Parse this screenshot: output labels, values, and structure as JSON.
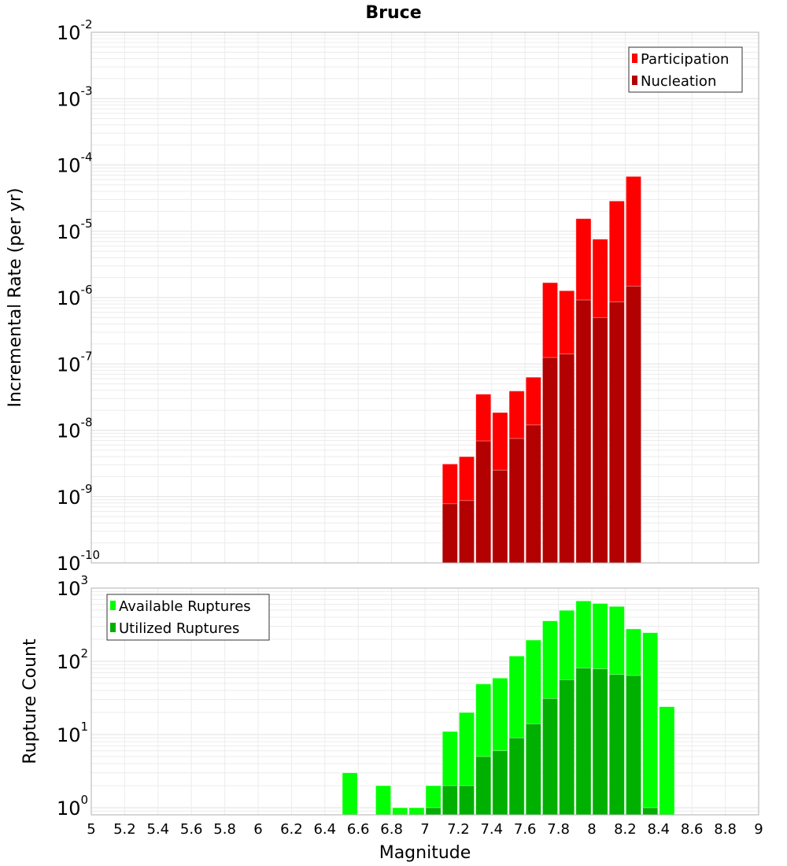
{
  "title": "Bruce",
  "chart_data": [
    {
      "type": "bar",
      "title": "Bruce",
      "xlabel": "",
      "ylabel": "Incremental Rate (per yr)",
      "yscale": "log",
      "xlim": [
        5,
        9
      ],
      "ylim": [
        1e-10,
        0.01
      ],
      "ytick_exponents": [
        -2,
        -3,
        -4,
        -5,
        -6,
        -7,
        -8,
        -9,
        -10
      ],
      "grid": true,
      "legend_position": "top-right",
      "bin_width": 0.1,
      "x": [
        7.15,
        7.25,
        7.35,
        7.45,
        7.55,
        7.65,
        7.75,
        7.85,
        7.95,
        8.05,
        8.15,
        8.25
      ],
      "series": [
        {
          "name": "Participation",
          "color": "#ff0000",
          "values": [
            3.1e-09,
            4e-09,
            3.5e-08,
            1.85e-08,
            3.9e-08,
            6.3e-08,
            1.68e-06,
            1.27e-06,
            1.55e-05,
            7.6e-06,
            2.86e-05,
            6.7e-05
          ]
        },
        {
          "name": "Nucleation",
          "color": "#b30000",
          "values": [
            7.8e-10,
            8.7e-10,
            6.9e-09,
            2.5e-09,
            7.5e-09,
            1.2e-08,
            1.25e-07,
            1.41e-07,
            9.2e-07,
            5e-07,
            8.6e-07,
            1.49e-06
          ]
        }
      ]
    },
    {
      "type": "bar",
      "title": "",
      "xlabel": "Magnitude",
      "ylabel": "Rupture Count",
      "yscale": "log",
      "xlim": [
        5,
        9
      ],
      "ylim": [
        0.8,
        1000
      ],
      "ytick_exponents": [
        3,
        2,
        1,
        0
      ],
      "xticks": [
        "5",
        "5.2",
        "5.4",
        "5.6",
        "5.8",
        "6",
        "6.2",
        "6.4",
        "6.6",
        "6.8",
        "7",
        "7.2",
        "7.4",
        "7.6",
        "7.8",
        "8",
        "8.2",
        "8.4",
        "8.6",
        "8.8",
        "9"
      ],
      "grid": true,
      "legend_position": "top-left",
      "bin_width": 0.1,
      "x": [
        6.55,
        6.75,
        6.85,
        6.95,
        7.05,
        7.15,
        7.25,
        7.35,
        7.45,
        7.55,
        7.65,
        7.75,
        7.85,
        7.95,
        8.05,
        8.15,
        8.25,
        8.35,
        8.45
      ],
      "series": [
        {
          "name": "Available Ruptures",
          "color": "#00ff00",
          "values": [
            3,
            2,
            1,
            1,
            2,
            11,
            20,
            49,
            59,
            118,
            195,
            357,
            497,
            668,
            617,
            562,
            277,
            246,
            24
          ]
        },
        {
          "name": "Utilized Ruptures",
          "color": "#00b000",
          "values": [
            0,
            0,
            0,
            0,
            1,
            2,
            2,
            5,
            6,
            9,
            14,
            31,
            56,
            81,
            79,
            66,
            64,
            1,
            0
          ]
        }
      ]
    }
  ]
}
